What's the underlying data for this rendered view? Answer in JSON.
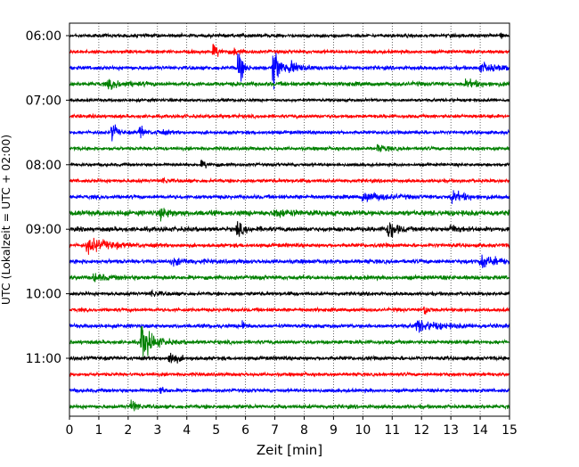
{
  "chart_data": {
    "type": "line",
    "title": "",
    "xlabel": "Zeit  [min]",
    "ylabel": "UTC (Lokalzeit = UTC + 02:00)",
    "xlim": [
      0,
      15
    ],
    "x_ticks": [
      "0",
      "1",
      "2",
      "3",
      "4",
      "5",
      "6",
      "7",
      "8",
      "9",
      "10",
      "11",
      "12",
      "13",
      "14",
      "15"
    ],
    "y_ticks": [
      "06:00",
      "07:00",
      "08:00",
      "09:00",
      "10:00",
      "11:00"
    ],
    "grid": "vertical dotted lines at each minute",
    "legend": "none",
    "trace_interval_minutes": 15,
    "colors_cycle": [
      "#000000",
      "#ff0000",
      "#0000ff",
      "#008000"
    ],
    "series": [
      {
        "start": "06:00",
        "color": "#000000",
        "noise": 0.45,
        "events": [
          {
            "t": 14.7,
            "amp": 2.2,
            "dur": 0.05
          }
        ]
      },
      {
        "start": "06:15",
        "color": "#ff0000",
        "noise": 0.45,
        "events": [
          {
            "t": 4.9,
            "amp": 1.5,
            "dur": 0.5
          },
          {
            "t": 5.6,
            "amp": 0.9,
            "dur": 0.3
          }
        ]
      },
      {
        "start": "06:30",
        "color": "#0000ff",
        "noise": 0.5,
        "events": [
          {
            "t": 5.75,
            "amp": 5.5,
            "dur": 0.25
          },
          {
            "t": 6.95,
            "amp": 8.0,
            "dur": 0.3
          },
          {
            "t": 7.5,
            "amp": 1.6,
            "dur": 0.8
          },
          {
            "t": 14.0,
            "amp": 1.2,
            "dur": 1.0
          }
        ]
      },
      {
        "start": "06:45",
        "color": "#008000",
        "noise": 0.55,
        "events": [
          {
            "t": 1.3,
            "amp": 0.9,
            "dur": 1.2
          },
          {
            "t": 13.5,
            "amp": 0.8,
            "dur": 1.0
          }
        ]
      },
      {
        "start": "07:00",
        "color": "#000000",
        "noise": 0.4,
        "events": []
      },
      {
        "start": "07:15",
        "color": "#ff0000",
        "noise": 0.45,
        "events": []
      },
      {
        "start": "07:30",
        "color": "#0000ff",
        "noise": 0.45,
        "events": [
          {
            "t": 1.45,
            "amp": 3.2,
            "dur": 0.25
          },
          {
            "t": 2.4,
            "amp": 2.0,
            "dur": 0.25
          },
          {
            "t": 3.0,
            "amp": 0.7,
            "dur": 0.5
          }
        ]
      },
      {
        "start": "07:45",
        "color": "#008000",
        "noise": 0.45,
        "events": [
          {
            "t": 10.5,
            "amp": 0.8,
            "dur": 0.6
          }
        ]
      },
      {
        "start": "08:00",
        "color": "#000000",
        "noise": 0.4,
        "events": [
          {
            "t": 4.5,
            "amp": 0.8,
            "dur": 0.6
          }
        ]
      },
      {
        "start": "08:15",
        "color": "#ff0000",
        "noise": 0.45,
        "events": [
          {
            "t": 3.2,
            "amp": 0.9,
            "dur": 0.3
          }
        ]
      },
      {
        "start": "08:30",
        "color": "#0000ff",
        "noise": 0.5,
        "events": [
          {
            "t": 10.0,
            "amp": 1.2,
            "dur": 1.4
          },
          {
            "t": 13.0,
            "amp": 1.4,
            "dur": 0.9
          }
        ]
      },
      {
        "start": "08:45",
        "color": "#008000",
        "noise": 0.7,
        "events": [
          {
            "t": 3.1,
            "amp": 1.6,
            "dur": 0.5
          },
          {
            "t": 7.0,
            "amp": 1.0,
            "dur": 0.8
          }
        ]
      },
      {
        "start": "09:00",
        "color": "#000000",
        "noise": 0.6,
        "events": [
          {
            "t": 5.7,
            "amp": 1.6,
            "dur": 0.6
          },
          {
            "t": 10.85,
            "amp": 3.2,
            "dur": 0.45
          },
          {
            "t": 13.0,
            "amp": 1.2,
            "dur": 0.5
          }
        ]
      },
      {
        "start": "09:15",
        "color": "#ff0000",
        "noise": 0.5,
        "events": [
          {
            "t": 0.6,
            "amp": 2.0,
            "dur": 1.3
          }
        ]
      },
      {
        "start": "09:30",
        "color": "#0000ff",
        "noise": 0.55,
        "events": [
          {
            "t": 3.5,
            "amp": 0.8,
            "dur": 1.0
          },
          {
            "t": 14.0,
            "amp": 1.6,
            "dur": 1.0
          }
        ]
      },
      {
        "start": "09:45",
        "color": "#008000",
        "noise": 0.55,
        "events": [
          {
            "t": 0.8,
            "amp": 0.9,
            "dur": 0.8
          }
        ]
      },
      {
        "start": "10:00",
        "color": "#000000",
        "noise": 0.45,
        "events": [
          {
            "t": 2.8,
            "amp": 1.1,
            "dur": 0.4
          }
        ]
      },
      {
        "start": "10:15",
        "color": "#ff0000",
        "noise": 0.45,
        "events": [
          {
            "t": 12.1,
            "amp": 1.5,
            "dur": 0.3
          }
        ]
      },
      {
        "start": "10:30",
        "color": "#0000ff",
        "noise": 0.5,
        "events": [
          {
            "t": 5.9,
            "amp": 1.4,
            "dur": 0.2
          },
          {
            "t": 11.8,
            "amp": 1.5,
            "dur": 1.4
          }
        ]
      },
      {
        "start": "10:45",
        "color": "#008000",
        "noise": 0.5,
        "events": [
          {
            "t": 2.45,
            "amp": 5.0,
            "dur": 0.7
          }
        ]
      },
      {
        "start": "11:00",
        "color": "#000000",
        "noise": 0.5,
        "events": [
          {
            "t": 3.4,
            "amp": 2.2,
            "dur": 0.4
          }
        ]
      },
      {
        "start": "11:15",
        "color": "#ff0000",
        "noise": 0.45,
        "events": []
      },
      {
        "start": "11:30",
        "color": "#0000ff",
        "noise": 0.45,
        "events": [
          {
            "t": 3.1,
            "amp": 1.1,
            "dur": 0.3
          }
        ]
      },
      {
        "start": "11:45",
        "color": "#008000",
        "noise": 0.5,
        "events": [
          {
            "t": 2.1,
            "amp": 1.8,
            "dur": 0.4
          }
        ]
      }
    ]
  }
}
